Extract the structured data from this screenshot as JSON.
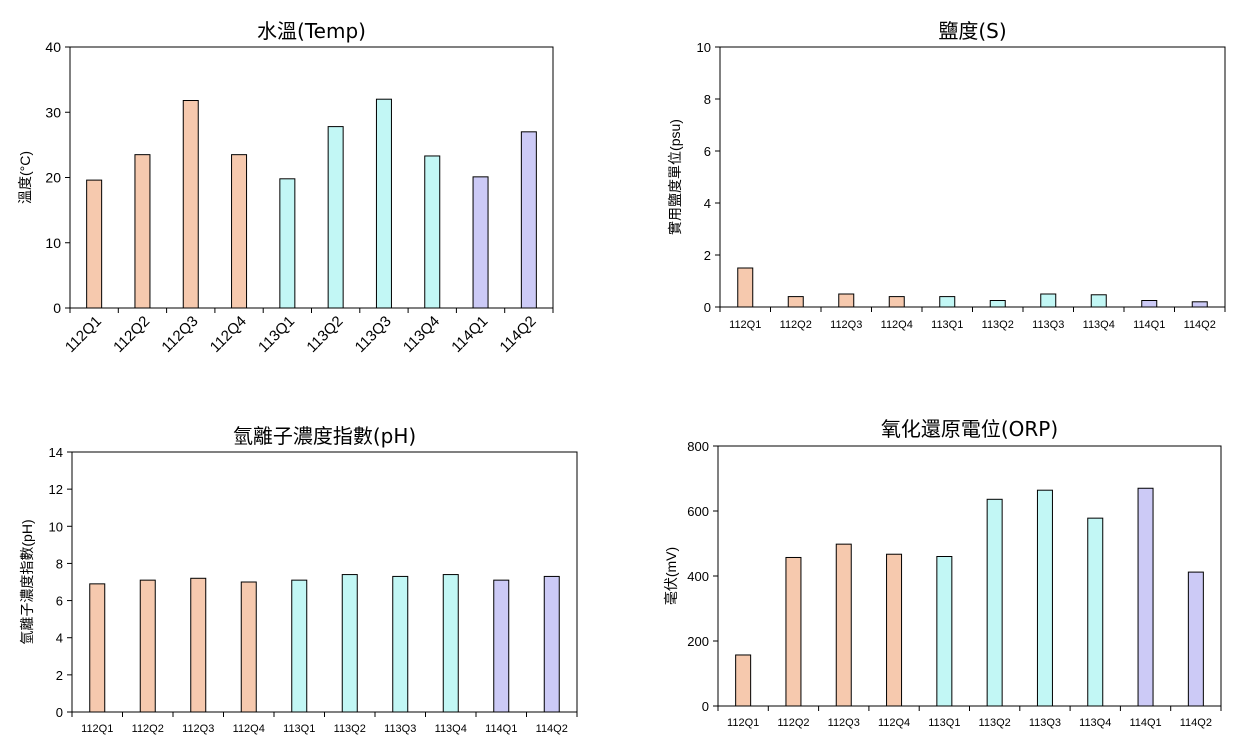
{
  "colors": {
    "112": "#f6c9ae",
    "113": "#c2f7f5",
    "114": "#cccaf6"
  },
  "chart_data": [
    {
      "type": "bar",
      "title": "水溫(Temp)",
      "ylabel": "溫度(°C)",
      "xlabel": "",
      "categories": [
        "112Q1",
        "112Q2",
        "112Q3",
        "112Q4",
        "113Q1",
        "113Q2",
        "113Q3",
        "113Q4",
        "114Q1",
        "114Q2"
      ],
      "values": [
        19.6,
        23.5,
        31.8,
        23.5,
        19.8,
        27.8,
        32.0,
        23.3,
        20.1,
        27.0
      ],
      "ylim": [
        0,
        40
      ],
      "yticks": [
        "0",
        "10",
        "20",
        "30",
        "40"
      ],
      "grid": false,
      "legend": "none"
    },
    {
      "type": "bar",
      "title": "鹽度(S)",
      "ylabel": "實用鹽度單位(psu)",
      "xlabel": "",
      "categories": [
        "112Q1",
        "112Q2",
        "112Q3",
        "112Q4",
        "113Q1",
        "113Q2",
        "113Q3",
        "113Q4",
        "114Q1",
        "114Q2"
      ],
      "values": [
        1.5,
        0.4,
        0.5,
        0.4,
        0.4,
        0.25,
        0.5,
        0.47,
        0.25,
        0.2
      ],
      "ylim": [
        0,
        10
      ],
      "yticks": [
        "0",
        "2",
        "4",
        "6",
        "8",
        "10"
      ],
      "grid": false,
      "legend": "none"
    },
    {
      "type": "bar",
      "title": "氫離子濃度指數(pH)",
      "ylabel": "氫離子濃度指數(pH)",
      "xlabel": "",
      "categories": [
        "112Q1",
        "112Q2",
        "112Q3",
        "112Q4",
        "113Q1",
        "113Q2",
        "113Q3",
        "113Q4",
        "114Q1",
        "114Q2"
      ],
      "values": [
        6.9,
        7.1,
        7.2,
        7.0,
        7.1,
        7.4,
        7.3,
        7.4,
        7.1,
        7.3
      ],
      "ylim": [
        0,
        14
      ],
      "yticks": [
        "0",
        "2",
        "4",
        "6",
        "8",
        "10",
        "12",
        "14"
      ],
      "grid": false,
      "legend": "none"
    },
    {
      "type": "bar",
      "title": "氧化還原電位(ORP)",
      "ylabel": "毫伏(mV)",
      "xlabel": "",
      "categories": [
        "112Q1",
        "112Q2",
        "112Q3",
        "112Q4",
        "113Q1",
        "113Q2",
        "113Q3",
        "113Q4",
        "114Q1",
        "114Q2"
      ],
      "values": [
        157,
        457,
        498,
        467,
        460,
        636,
        664,
        578,
        670,
        412
      ],
      "ylim": [
        0,
        800
      ],
      "yticks": [
        "0",
        "200",
        "400",
        "600",
        "800"
      ],
      "grid": false,
      "legend": "none"
    }
  ]
}
